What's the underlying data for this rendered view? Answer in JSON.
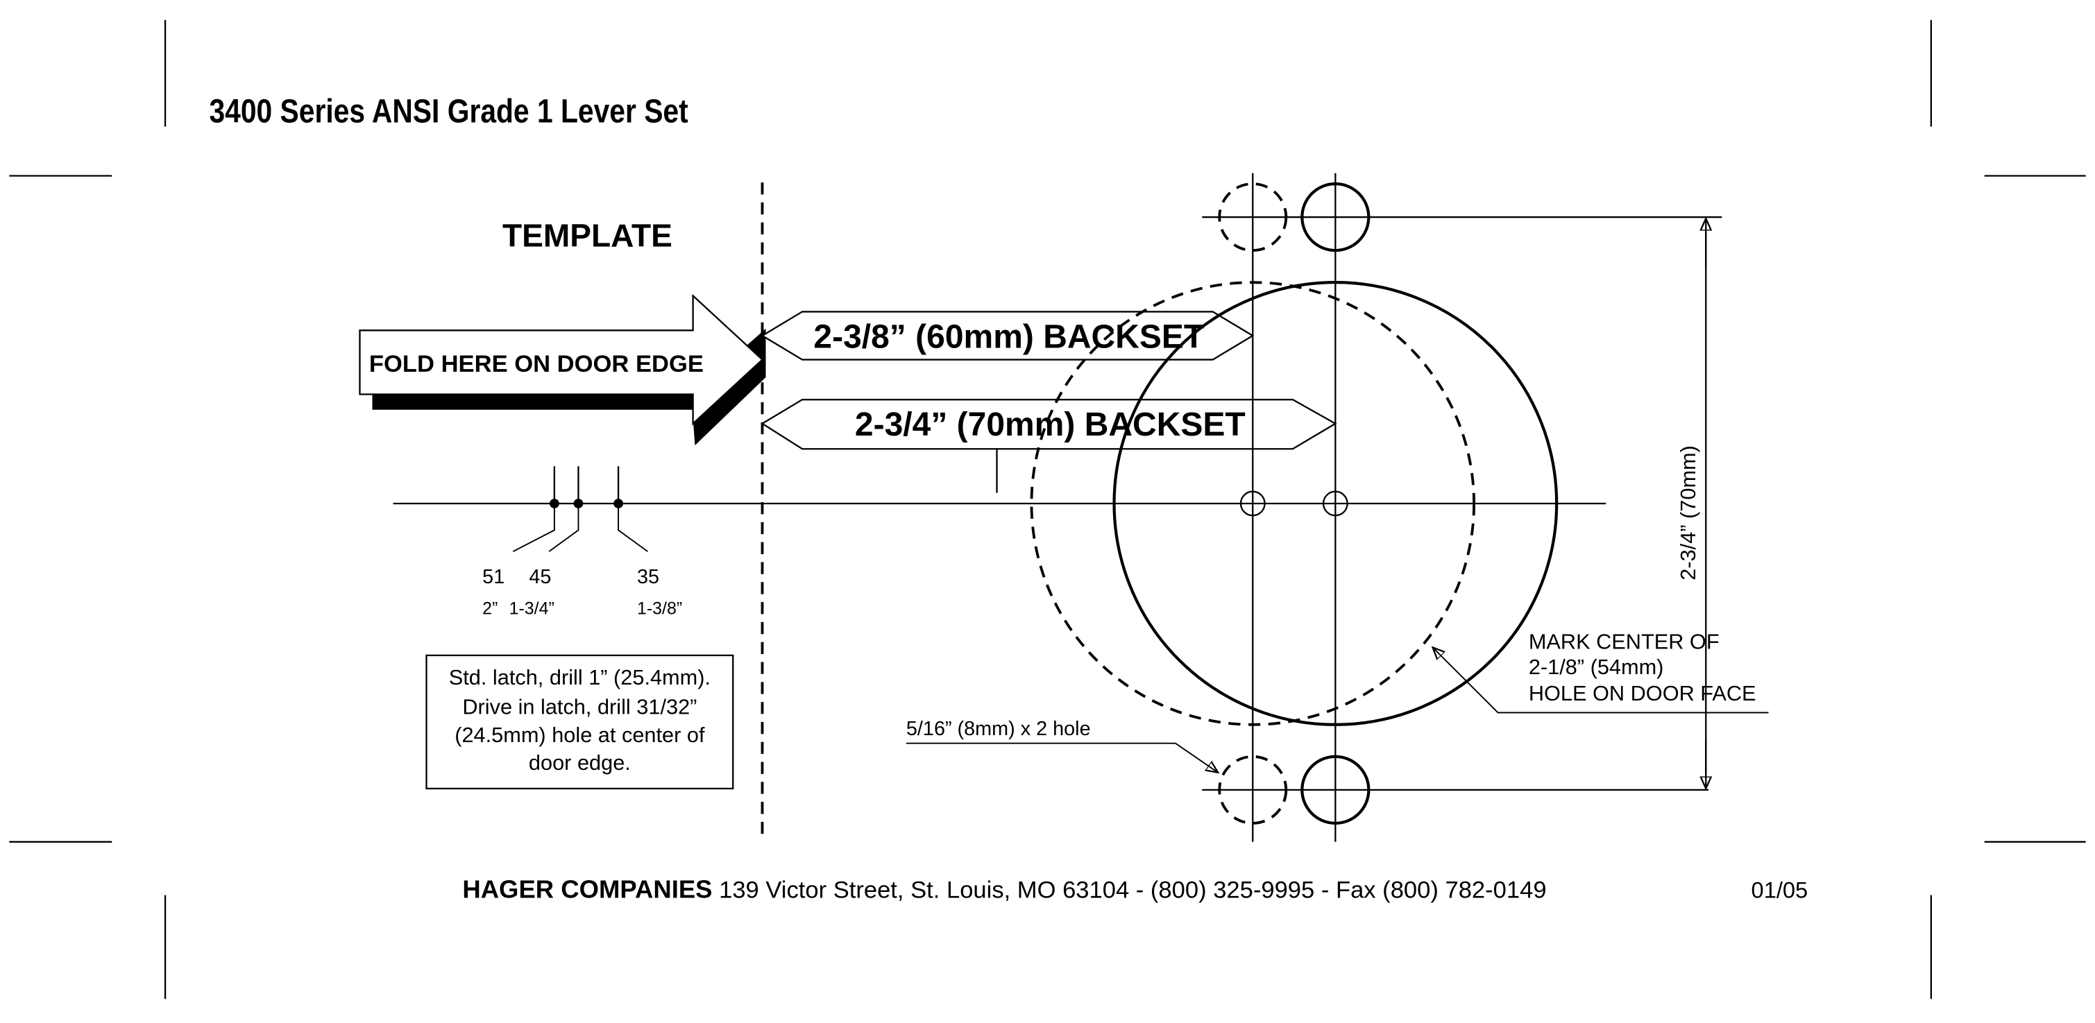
{
  "header": {
    "title": "3400 Series ANSI Grade 1 Lever Set"
  },
  "template": {
    "heading": "TEMPLATE",
    "fold_label": "FOLD HERE ON DOOR EDGE",
    "backsets": [
      "2-3/8” (60mm) BACKSET",
      "2-3/4” (70mm) BACKSET"
    ],
    "door_thickness": {
      "mm": [
        "51",
        "45",
        "35"
      ],
      "inches": [
        "2”",
        "1-3/4”",
        "1-3/8”"
      ]
    },
    "note": [
      "Std. latch, drill 1” (25.4mm).",
      "Drive in latch, drill 31/32”",
      "(24.5mm) hole at center of",
      "door edge."
    ],
    "vertical_dimension": "2-3/4” (70mm)",
    "mark_center": [
      "MARK CENTER OF",
      "2-1/8” (54mm)",
      "HOLE ON DOOR FACE"
    ],
    "hole_label": "5/16” (8mm) x 2 hole"
  },
  "footer": {
    "company": "HAGER COMPANIES",
    "address": "139 Victor Street, St. Louis, MO 63104 - (800) 325-9995 - Fax (800) 782-0149",
    "date": "01/05"
  }
}
